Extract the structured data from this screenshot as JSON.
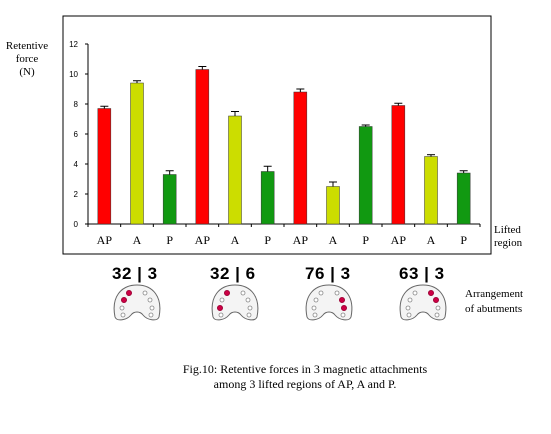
{
  "chart_data": {
    "type": "bar",
    "ylabel": "Retentive force (N)",
    "ylabel_lines": [
      "Retentive",
      "force",
      "(N)"
    ],
    "xlabel": "Lifted region",
    "xlabel_lines": [
      "Lifted",
      "region"
    ],
    "ylim": [
      0,
      12
    ],
    "yticks": [
      "0",
      "2",
      "4",
      "6",
      "8",
      "10",
      "12"
    ],
    "categories": [
      "AP",
      "A",
      "P",
      "AP",
      "A",
      "P",
      "AP",
      "A",
      "P",
      "AP",
      "A",
      "P"
    ],
    "values": [
      7.7,
      9.4,
      3.3,
      10.3,
      7.2,
      3.5,
      8.8,
      2.5,
      6.5,
      7.9,
      4.5,
      3.4
    ],
    "errors": [
      0.15,
      0.15,
      0.25,
      0.2,
      0.3,
      0.35,
      0.2,
      0.3,
      0.1,
      0.15,
      0.12,
      0.15
    ],
    "grid": false,
    "region_colors": {
      "AP": "#ff0000",
      "A": "#ccdd00",
      "P": "#119911"
    },
    "groups": [
      {
        "label": "32 | 3",
        "dots": [
          0,
          2
        ]
      },
      {
        "label": "32 | 6",
        "dots": [
          0,
          4
        ]
      },
      {
        "label": "76 | 3",
        "dots": [
          3,
          5
        ]
      },
      {
        "label": "63 | 3",
        "dots": [
          1,
          3
        ]
      }
    ]
  },
  "arrangement_caption": [
    "Arrangement",
    "of abutments"
  ],
  "figure_caption": [
    "Fig.10: Retentive forces in 3 magnetic attachments",
    "among 3 lifted regions of AP, A and P."
  ]
}
